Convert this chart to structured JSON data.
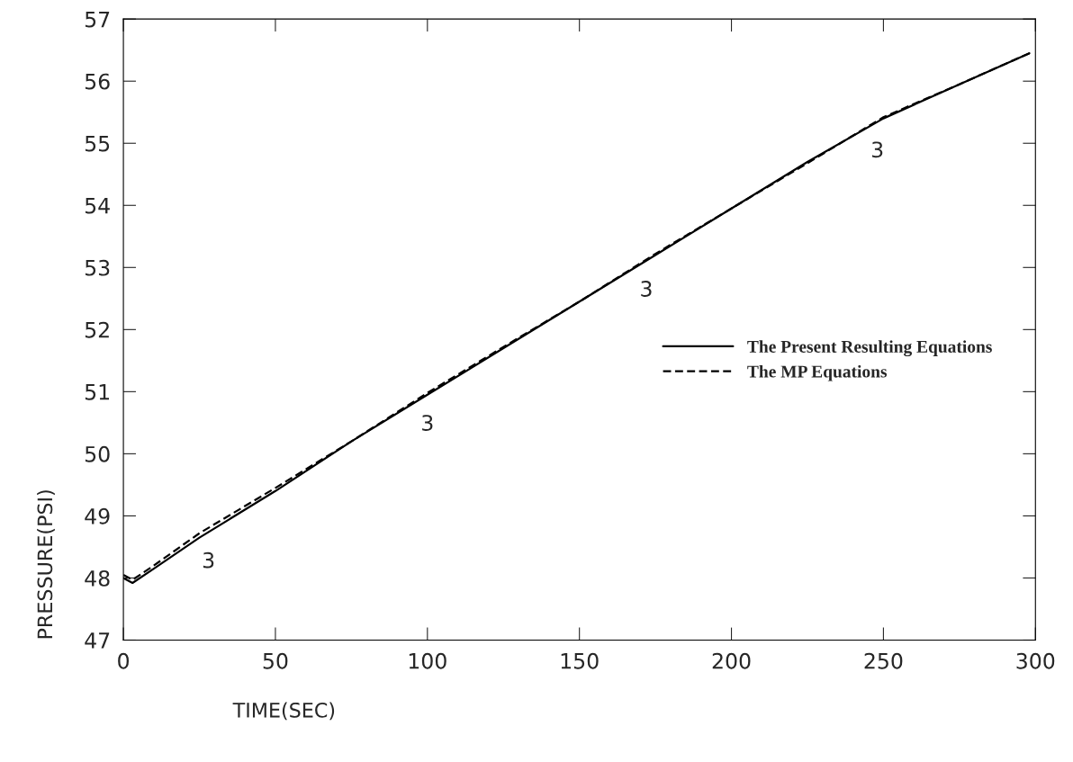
{
  "chart_data": {
    "type": "line",
    "xlabel": "TIME(SEC)",
    "ylabel": "PRESSURE(PSI)",
    "xlim": [
      0,
      300
    ],
    "xticks": [
      0,
      50,
      100,
      150,
      200,
      250,
      300
    ],
    "ylim": [
      47,
      57
    ],
    "yticks": [
      47,
      48,
      49,
      50,
      51,
      52,
      53,
      54,
      55,
      56,
      57
    ],
    "grid": false,
    "legend": "right",
    "marker": "none",
    "series": [
      {
        "name": "The Present Resulting Equations",
        "color": "#000000",
        "line_style": "solid",
        "x": [
          0,
          3,
          10,
          25,
          50,
          75,
          100,
          125,
          150,
          175,
          200,
          225,
          250,
          275,
          298
        ],
        "values": [
          48.0,
          47.92,
          48.15,
          48.65,
          49.4,
          50.2,
          50.95,
          51.7,
          52.45,
          53.2,
          53.95,
          54.7,
          55.4,
          55.95,
          56.45
        ]
      },
      {
        "name": "The MP Equations",
        "color": "#000000",
        "line_style": "dashed",
        "x": [
          0,
          3,
          10,
          25,
          50,
          75,
          100,
          125,
          150,
          175,
          200,
          225,
          250,
          275,
          298
        ],
        "values": [
          48.05,
          47.97,
          48.2,
          48.72,
          49.45,
          50.2,
          50.98,
          51.72,
          52.45,
          53.22,
          53.95,
          54.68,
          55.42,
          55.95,
          56.45
        ]
      }
    ],
    "annotations": [
      {
        "text": "3",
        "x": 28,
        "y": 48.74
      },
      {
        "text": "3",
        "x": 100,
        "y": 50.95
      },
      {
        "text": "3",
        "x": 172,
        "y": 53.11
      },
      {
        "text": "3",
        "x": 248,
        "y": 55.35
      }
    ]
  }
}
